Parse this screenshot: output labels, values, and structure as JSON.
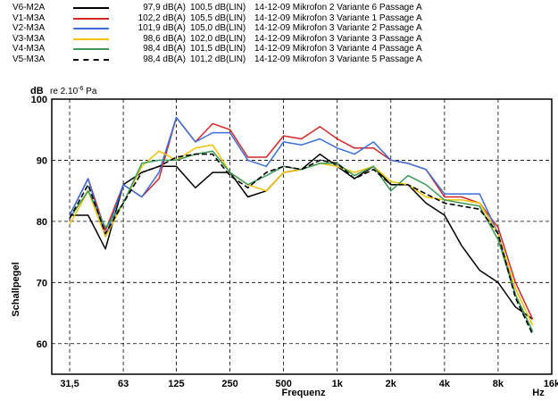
{
  "legend": [
    {
      "name": "V6-M2A",
      "dba": "97,9 dB(A)",
      "lin": "100,5 dB(LIN)",
      "desc": "14-12-09 Mikrofon 2 Variante 6 Passage A",
      "color": "#000000",
      "dash": false
    },
    {
      "name": "V1-M3A",
      "dba": "102,2 dB(A)",
      "lin": "105,5 dB(LIN)",
      "desc": "14-12-09 Mikrofon 3 Variante 1 Passage A",
      "color": "#d62728",
      "dash": false
    },
    {
      "name": "V2-M3A",
      "dba": "101,9 dB(A)",
      "lin": "105,0 dB(LIN)",
      "desc": "14-12-09 Mikrofon 3 Variante 2 Passage A",
      "color": "#3a6fd8",
      "dash": false
    },
    {
      "name": "V3-M3A",
      "dba": "98,6 dB(A)",
      "lin": "102,0 dB(LIN)",
      "desc": "14-12-09 Mikrofon 3 Variante 3 Passage A",
      "color": "#f2c200",
      "dash": false
    },
    {
      "name": "V4-M3A",
      "dba": "98,4 dB(A)",
      "lin": "101,5 dB(LIN)",
      "desc": "14-12-09 Mikrofon 3 Variante 4 Passage A",
      "color": "#3a9a58",
      "dash": false
    },
    {
      "name": "V5-M3A",
      "dba": "98,4 dB(A)",
      "lin": "101,2 dB(LIN)",
      "desc": "14-12-09 Mikrofon 3 Variante 5 Passage A",
      "color": "#000000",
      "dash": true
    }
  ],
  "chart_data": {
    "type": "line",
    "y_unit": "dB",
    "reference": "re 2.10-6 Pa",
    "ylabel": "Schallpegel",
    "xlabel": "Frequenz",
    "x_unit": "Hz",
    "ylim": [
      55,
      100
    ],
    "yticks": [
      60,
      70,
      80,
      90,
      100
    ],
    "xlim": [
      25,
      16000
    ],
    "xscale": "log",
    "xtick_labels": [
      "31,5",
      "63",
      "125",
      "250",
      "500",
      "1k",
      "2k",
      "4k",
      "8k",
      "16k"
    ],
    "xtick_values": [
      31.5,
      63,
      125,
      250,
      500,
      1000,
      2000,
      4000,
      8000,
      16000
    ],
    "grid": "dashed",
    "x": [
      31.5,
      40,
      50,
      63,
      80,
      100,
      125,
      160,
      200,
      250,
      315,
      400,
      500,
      630,
      800,
      1000,
      1250,
      1600,
      2000,
      2500,
      3150,
      4000,
      5000,
      6300,
      8000,
      10000,
      12500
    ],
    "series": [
      {
        "name": "V6-M2A",
        "values": [
          81,
          81,
          75.5,
          86,
          88,
          89,
          89,
          85.5,
          88,
          88,
          84,
          85,
          88,
          88.5,
          91,
          89,
          87,
          89,
          86,
          86,
          83,
          81,
          76,
          72,
          70,
          66,
          64
        ]
      },
      {
        "name": "V1-M3A",
        "values": [
          81,
          87,
          78.5,
          86,
          84,
          87,
          97,
          93,
          96,
          95,
          90.5,
          90.5,
          94,
          93.5,
          95.5,
          93.5,
          92,
          92,
          90,
          89.5,
          88.5,
          84,
          84,
          83,
          79,
          70,
          64
        ]
      },
      {
        "name": "V2-M3A",
        "values": [
          81,
          87,
          77.5,
          86,
          84,
          88,
          97,
          93,
          94.5,
          94.5,
          90,
          89,
          93,
          92.5,
          93.5,
          92,
          91,
          93,
          90,
          89.5,
          88.5,
          84.5,
          84.5,
          84.5,
          78,
          68,
          62
        ]
      },
      {
        "name": "V3-M3A",
        "values": [
          79.5,
          85,
          77.5,
          83,
          89,
          91.5,
          90,
          92,
          92.5,
          88,
          86,
          85,
          88,
          88.5,
          89.5,
          89,
          88,
          89,
          86.5,
          86,
          84,
          83.5,
          83.5,
          83,
          78,
          69,
          63
        ]
      },
      {
        "name": "V4-M3A",
        "values": [
          80.5,
          85,
          79,
          83,
          89.5,
          90,
          90,
          91,
          91.5,
          88,
          86,
          87.5,
          89,
          88.5,
          89.5,
          89.5,
          87.5,
          89,
          85,
          87.5,
          86,
          83.5,
          83,
          82.5,
          77,
          68,
          62
        ]
      },
      {
        "name": "V5-M3A",
        "values": [
          80.5,
          86,
          78,
          83,
          88,
          89,
          90.5,
          91,
          91,
          87.5,
          85.5,
          88,
          89,
          88.5,
          90,
          89.5,
          87,
          88.5,
          86,
          86,
          84.5,
          83,
          82.5,
          82,
          78,
          67.5,
          61.5
        ]
      }
    ]
  }
}
